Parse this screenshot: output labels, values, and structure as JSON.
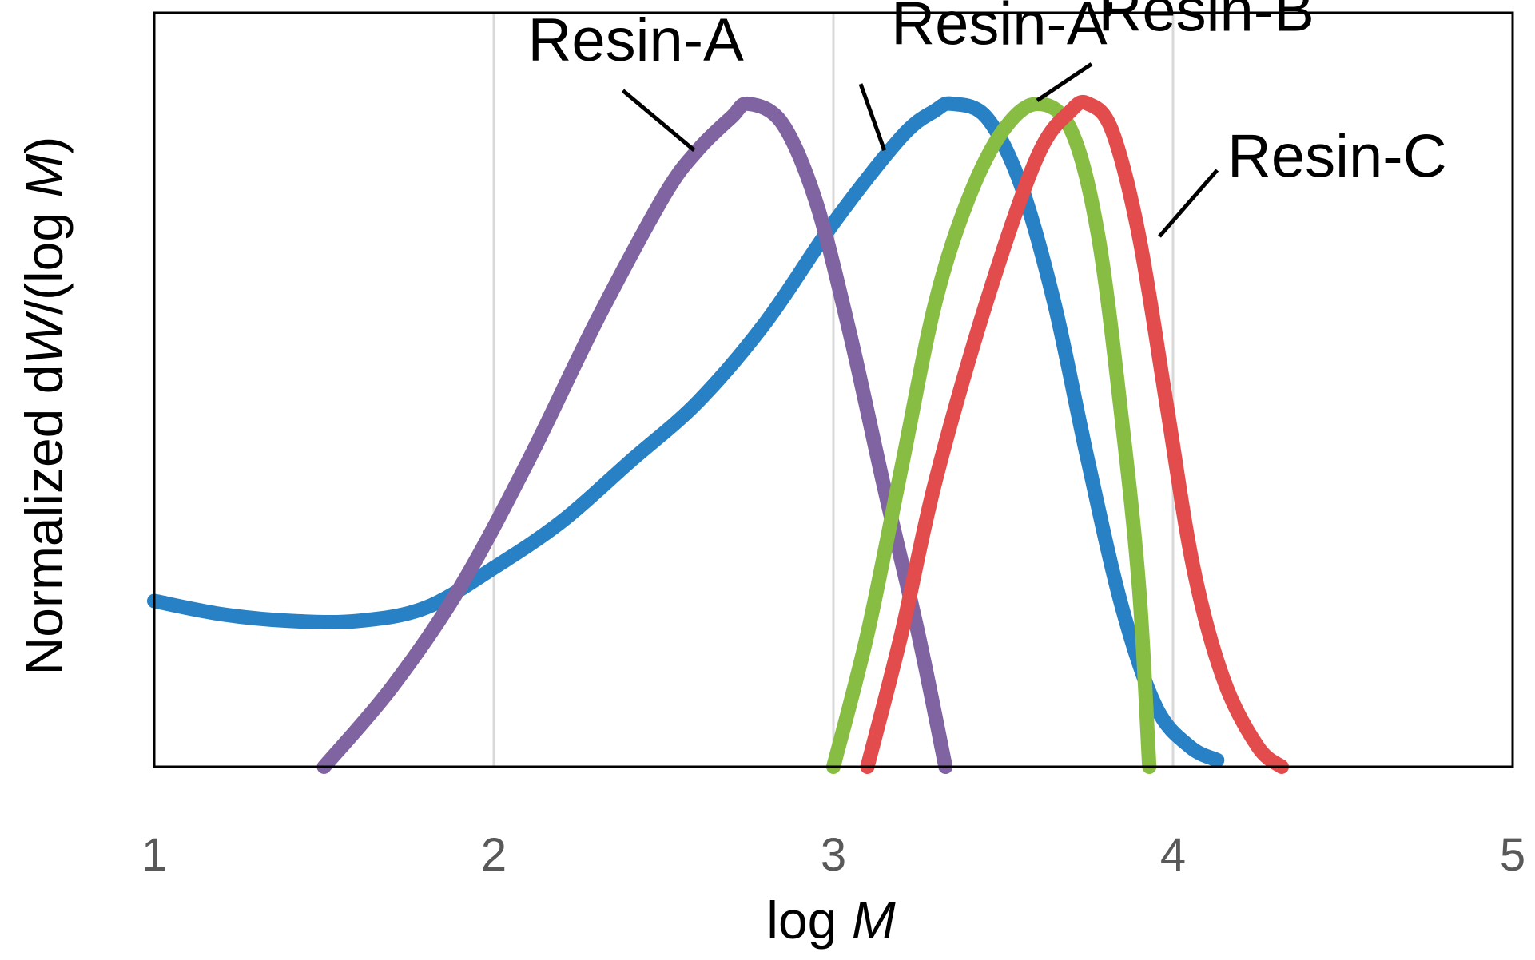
{
  "chart_data": {
    "type": "line",
    "title": "",
    "xlabel": "log M",
    "xlabel_parts": {
      "prefix": "log ",
      "italic": "M"
    },
    "ylabel": "Normalized dW/(log M)",
    "ylabel_parts": {
      "p1": "Normalized d",
      "i1": "W",
      "p2": "/(log ",
      "i2": "M",
      "p3": ")"
    },
    "xlim": [
      1,
      5
    ],
    "ylim": [
      0,
      1.1
    ],
    "xticks": [
      1,
      2,
      3,
      4,
      5
    ],
    "xtick_labels": [
      "1",
      "2",
      "3",
      "4",
      "5"
    ],
    "grid": "vertical",
    "legend": "inline labels",
    "series": [
      {
        "name": "Resin-A",
        "label": "Resin-A",
        "color": "#8064A2",
        "points": [
          [
            1.5,
            0
          ],
          [
            1.7,
            0.12
          ],
          [
            1.9,
            0.27
          ],
          [
            2.1,
            0.46
          ],
          [
            2.3,
            0.67
          ],
          [
            2.5,
            0.86
          ],
          [
            2.6,
            0.93
          ],
          [
            2.7,
            0.98
          ],
          [
            2.75,
            1.0
          ],
          [
            2.85,
            0.97
          ],
          [
            2.95,
            0.85
          ],
          [
            3.05,
            0.65
          ],
          [
            3.15,
            0.42
          ],
          [
            3.25,
            0.2
          ],
          [
            3.33,
            0
          ]
        ]
      },
      {
        "name": "Resin-A'",
        "label": "Resin-A’",
        "color": "#2781C4",
        "points": [
          [
            1,
            0.25
          ],
          [
            1.2,
            0.23
          ],
          [
            1.4,
            0.22
          ],
          [
            1.6,
            0.22
          ],
          [
            1.8,
            0.24
          ],
          [
            2.0,
            0.3
          ],
          [
            2.2,
            0.37
          ],
          [
            2.4,
            0.46
          ],
          [
            2.6,
            0.55
          ],
          [
            2.8,
            0.67
          ],
          [
            3.0,
            0.82
          ],
          [
            3.2,
            0.95
          ],
          [
            3.3,
            0.99
          ],
          [
            3.35,
            1.0
          ],
          [
            3.45,
            0.98
          ],
          [
            3.55,
            0.88
          ],
          [
            3.65,
            0.7
          ],
          [
            3.75,
            0.46
          ],
          [
            3.85,
            0.24
          ],
          [
            3.95,
            0.09
          ],
          [
            4.05,
            0.03
          ],
          [
            4.13,
            0.01
          ]
        ]
      },
      {
        "name": "Resin-B",
        "label": "Resin-B",
        "color": "#88BD44",
        "points": [
          [
            3.0,
            0
          ],
          [
            3.1,
            0.2
          ],
          [
            3.2,
            0.45
          ],
          [
            3.3,
            0.7
          ],
          [
            3.4,
            0.86
          ],
          [
            3.5,
            0.96
          ],
          [
            3.6,
            1.0
          ],
          [
            3.7,
            0.96
          ],
          [
            3.78,
            0.8
          ],
          [
            3.85,
            0.52
          ],
          [
            3.9,
            0.27
          ],
          [
            3.93,
            0
          ]
        ]
      },
      {
        "name": "Resin-C",
        "label": "Resin-C",
        "color": "#E24C4C",
        "points": [
          [
            3.1,
            0
          ],
          [
            3.2,
            0.2
          ],
          [
            3.3,
            0.43
          ],
          [
            3.45,
            0.7
          ],
          [
            3.6,
            0.92
          ],
          [
            3.7,
            0.99
          ],
          [
            3.75,
            1.0
          ],
          [
            3.82,
            0.96
          ],
          [
            3.9,
            0.8
          ],
          [
            3.98,
            0.55
          ],
          [
            4.06,
            0.3
          ],
          [
            4.15,
            0.13
          ],
          [
            4.25,
            0.03
          ],
          [
            4.32,
            0
          ]
        ]
      }
    ]
  }
}
